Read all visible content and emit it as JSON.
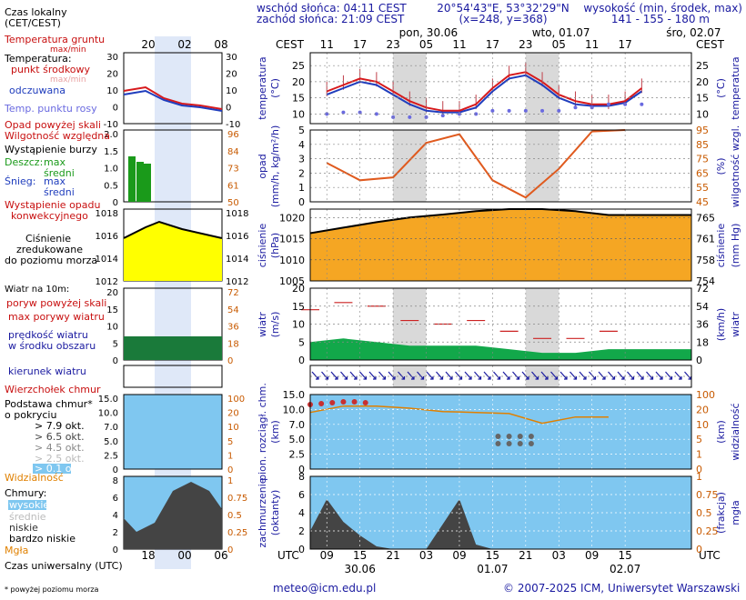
{
  "header": {
    "sunrise": "wschód słońca: 04:11 CEST",
    "sunset": "zachód słońca: 21:09 CEST",
    "coords": "20°54'43\"E, 53°32'29\"N",
    "grid": "(x=248, y=368)",
    "height_title": "wysokość (min, środek, max)",
    "height_values": "141 - 155 - 180 m"
  },
  "legend": {
    "local_time": "Czas lokalny",
    "local_time2": "(CET/CEST)",
    "local_ticks": [
      "20",
      "02",
      "08"
    ],
    "ground_temp": "Temperatura gruntu",
    "max_min": "max/min",
    "temperature": "Temperatura:",
    "mid_point": "punkt środkowy",
    "max_min2": "max/min",
    "perceived": "odczuwana",
    "dew_point": "Temp. punktu rosy",
    "rain_above": "Opad powyżej skali",
    "humidity": "Wilgotność względna",
    "storm": "Wystąpienie burzy",
    "rain_label": "Deszcz:",
    "rain_max": "max",
    "rain_mid": "średni",
    "snow_label": "Śnieg:",
    "snow_max": "max",
    "snow_mid": "średni",
    "conv": "Wystąpienie opadu",
    "conv2": "konwekcyjnego",
    "pressure1": "Ciśnienie",
    "pressure2": "zredukowane",
    "pressure3": "do poziomu morza",
    "wind_at": "Wiatr na 10m:",
    "gust_above": "poryw powyżej skali",
    "gust_max": "max porywy wiatru",
    "wind_speed": "prędkość wiatru",
    "wind_speed2": "w środku obszaru",
    "wind_dir": "kierunek wiatru",
    "cloud_top": "Wierzchołek chmur",
    "cloud_base": "Podstawa chmur*",
    "cloud_base2": "o pokryciu",
    "okt": [
      "> 7.9 okt.",
      "> 6.5 okt.",
      "> 4.5 okt.",
      "> 2.5 okt.",
      "> 0.1 okt."
    ],
    "visibility": "Widzialność",
    "clouds": "Chmury:",
    "high": "wysokie",
    "mid": "średnie",
    "low": "niskie",
    "very_low": "bardzo niskie",
    "fog": "Mgła",
    "utc_label": "Czas uniwersalny (UTC)",
    "utc_ticks": [
      "18",
      "00",
      "06"
    ],
    "footnote": "* powyżej poziomu morza",
    "l_temp_ticks": [
      "30",
      "20",
      "10",
      "0",
      "-10"
    ],
    "l_rain_ticks": [
      "2.0",
      "1.5",
      "1.0",
      "0.5",
      "0"
    ],
    "l_hum_ticks": [
      "96",
      "84",
      "73",
      "61",
      "50"
    ],
    "l_pres_ticks": [
      "1018",
      "1016",
      "1014",
      "1012"
    ],
    "l_wind_ticks": [
      "20",
      "15",
      "10",
      "5",
      "0"
    ],
    "l_windk_ticks": [
      "72",
      "54",
      "36",
      "18",
      "0"
    ],
    "l_cloud_ticks": [
      "15.0",
      "10.0",
      "7.0",
      "5.0",
      "2.5",
      "0"
    ],
    "l_vis_ticks": [
      "100",
      "20",
      "10",
      "5",
      "1",
      "0"
    ],
    "l_cc_ticks": [
      "8",
      "6",
      "4",
      "2",
      "0"
    ],
    "l_fog_ticks": [
      "1",
      "0.75",
      "0.5",
      "0.25",
      "0"
    ]
  },
  "main": {
    "top_tz": "CEST",
    "days": [
      "pon, 30.06",
      "wto, 01.07",
      "śro, 02.07"
    ],
    "top_hours": [
      "11",
      "17",
      "23",
      "05",
      "11",
      "17",
      "23",
      "05",
      "11",
      "17"
    ],
    "utc_tz": "UTC",
    "bottom_hours": [
      "09",
      "15",
      "21",
      "03",
      "09",
      "15",
      "21",
      "03",
      "09",
      "15"
    ],
    "bottom_dates": [
      "30.06",
      "01.07",
      "02.07"
    ],
    "footer_email": "meteo@icm.edu.pl",
    "footer_copy": "© 2007-2025 ICM, Uniwersytet Warszawski",
    "temp_label_l": "temperatura",
    "temp_unit_l": "(°C)",
    "temp_label_r": "temperatura",
    "temp_unit_r": "(°C)",
    "rain_label_l": "opad",
    "rain_unit_l": "(mm/h, kg/m²/h)",
    "hum_label_r": "wilgotność wzgl.",
    "hum_unit_r": "(%)",
    "pres_label_l": "ciśnienie",
    "pres_unit_l": "(hPa)",
    "pres_label_r": "ciśnienie",
    "pres_unit_r": "(mm Hg)",
    "wind_label_l": "wiatr",
    "wind_unit_l": "(m/s)",
    "wind_label_r": "wiatr",
    "wind_unit_r": "(km/h)",
    "cloud_label_l1": "pion. rozciągł. chm.",
    "cloud_label_l2": "(km)",
    "vis_label_r": "widzialność",
    "vis_unit_r": "(km)",
    "cc_label_l1": "zachmurzenie",
    "cc_label_l2": "(oktanty)",
    "fog_label_r": "mgła",
    "fog_unit_r": "(frakcja)",
    "temp_ticks": [
      "25",
      "20",
      "15",
      "10"
    ],
    "rain_ticks": [
      "5",
      "4",
      "3",
      "2",
      "1",
      "0"
    ],
    "hum_ticks": [
      "95",
      "85",
      "75",
      "65",
      "55",
      "45"
    ],
    "pres_ticks": [
      "1020",
      "1015",
      "1010",
      "1005"
    ],
    "pres_mm_ticks": [
      "765",
      "761",
      "758",
      "754"
    ],
    "wind_ticks": [
      "20",
      "15",
      "10",
      "5",
      "0"
    ],
    "windk_ticks": [
      "72",
      "54",
      "36",
      "18",
      "0"
    ],
    "cloud_ticks": [
      "15.0",
      "10.0",
      "7.0",
      "5.0",
      "2.5",
      "0"
    ],
    "vis_ticks": [
      "100",
      "20",
      "10",
      "5",
      "1",
      "0"
    ],
    "cc_ticks": [
      "8",
      "6",
      "4",
      "2",
      "0"
    ],
    "fog_ticks": [
      "1",
      "0.75",
      "0.5",
      "0.25",
      "0"
    ]
  },
  "colors": {
    "temp": "#d7191c",
    "perceived": "#1f3dbd",
    "dew": "#6a6ae0",
    "humidity": "#e05a1e",
    "pressure_line": "#000000",
    "pressure_fill": "#f5a623",
    "wind_fill": "#12a84a",
    "gust": "#cc2222",
    "cloud_bg": "#7fc7f0",
    "night": "#d9d9d9",
    "axis_blue": "#1a1aa0",
    "axis_orange": "#c85a00"
  },
  "chart_data": [
    {
      "type": "line",
      "title": "temperatura",
      "x": [
        "30.06 11",
        "30.06 14",
        "30.06 17",
        "30.06 20",
        "30.06 23",
        "01.07 02",
        "01.07 05",
        "01.07 08",
        "01.07 11",
        "01.07 14",
        "01.07 17",
        "01.07 20",
        "01.07 23",
        "02.07 02",
        "02.07 05",
        "02.07 08",
        "02.07 11",
        "02.07 14",
        "02.07 17",
        "02.07 20"
      ],
      "series": [
        {
          "name": "punkt środkowy",
          "values": [
            17,
            19,
            21,
            20,
            17,
            14,
            12,
            11,
            11,
            13,
            18,
            22,
            23,
            20,
            16,
            14,
            13,
            13,
            14,
            18
          ]
        },
        {
          "name": "odczuwana",
          "values": [
            16,
            18,
            20,
            19,
            16,
            13,
            11,
            10.5,
            10.5,
            12,
            17,
            21,
            22,
            19,
            15,
            13,
            12.5,
            12.5,
            13.5,
            17
          ]
        },
        {
          "name": "Temp. punktu rosy",
          "values": [
            10,
            10.5,
            10.5,
            10,
            9,
            9,
            9,
            9.5,
            10,
            10,
            11,
            11,
            11,
            11,
            11,
            12,
            12,
            13,
            13,
            13
          ]
        }
      ],
      "ylim": [
        7,
        29
      ]
    },
    {
      "type": "line",
      "title": "wilgotność wzgl.",
      "x": [
        "30.06 11",
        "30.06 17",
        "30.06 23",
        "01.07 05",
        "01.07 11",
        "01.07 17",
        "01.07 23",
        "02.07 05",
        "02.07 11",
        "02.07 17"
      ],
      "series": [
        {
          "name": "Wilgotność względna",
          "values": [
            72,
            60,
            62,
            86,
            92,
            60,
            48,
            68,
            94,
            95
          ]
        }
      ],
      "ylim": [
        45,
        95
      ]
    },
    {
      "type": "area",
      "title": "ciśnienie",
      "x": [
        "30.06 09",
        "30.06 15",
        "30.06 21",
        "01.07 03",
        "01.07 09",
        "01.07 15",
        "01.07 21",
        "02.07 03",
        "02.07 09",
        "02.07 15"
      ],
      "series": [
        {
          "name": "ciśnienie",
          "values": [
            1016.3,
            1017.6,
            1018.9,
            1020.0,
            1020.7,
            1021.5,
            1022.0,
            1022.0,
            1021.5,
            1020.6
          ]
        }
      ],
      "ylim": [
        1005,
        1022
      ]
    },
    {
      "type": "area",
      "title": "wiatr",
      "x": [
        "30.06 09",
        "30.06 15",
        "30.06 21",
        "01.07 03",
        "01.07 09",
        "01.07 15",
        "01.07 21",
        "02.07 03",
        "02.07 09",
        "02.07 15"
      ],
      "series": [
        {
          "name": "prędkość wiatru",
          "values": [
            5,
            6,
            5,
            4,
            4,
            4,
            3,
            2,
            2,
            3
          ]
        },
        {
          "name": "max porywy wiatru",
          "values": [
            14,
            16,
            15,
            11,
            10,
            11,
            8,
            6,
            6,
            8
          ]
        }
      ],
      "ylim": [
        0,
        20
      ]
    },
    {
      "type": "line",
      "title": "widzialność",
      "x": [
        "30.06 09",
        "30.06 15",
        "30.06 21",
        "01.07 03",
        "01.07 09",
        "01.07 15",
        "01.07 21",
        "02.07 03",
        "02.07 09",
        "02.07 15"
      ],
      "series": [
        {
          "name": "Widzialność",
          "values": [
            32,
            48,
            48,
            42,
            34,
            32,
            30,
            16,
            24,
            24
          ]
        }
      ],
      "ylim": [
        0,
        100
      ]
    },
    {
      "type": "area",
      "title": "zachmurzenie",
      "x": [
        "30.06 09",
        "30.06 12",
        "30.06 15",
        "30.06 18",
        "30.06 21",
        "01.07 03",
        "01.07 09",
        "01.07 12",
        "01.07 15",
        "01.07 21",
        "02.07 03"
      ],
      "series": [
        {
          "name": "niskie",
          "values": [
            2,
            5.5,
            3,
            1.5,
            0.3,
            0,
            0,
            5.5,
            0.5,
            0,
            0
          ]
        },
        {
          "name": "wysokie",
          "values": [
            0,
            4,
            3,
            0,
            0,
            0,
            0,
            0,
            0,
            0,
            0
          ]
        }
      ],
      "ylim": [
        0,
        8
      ]
    }
  ]
}
